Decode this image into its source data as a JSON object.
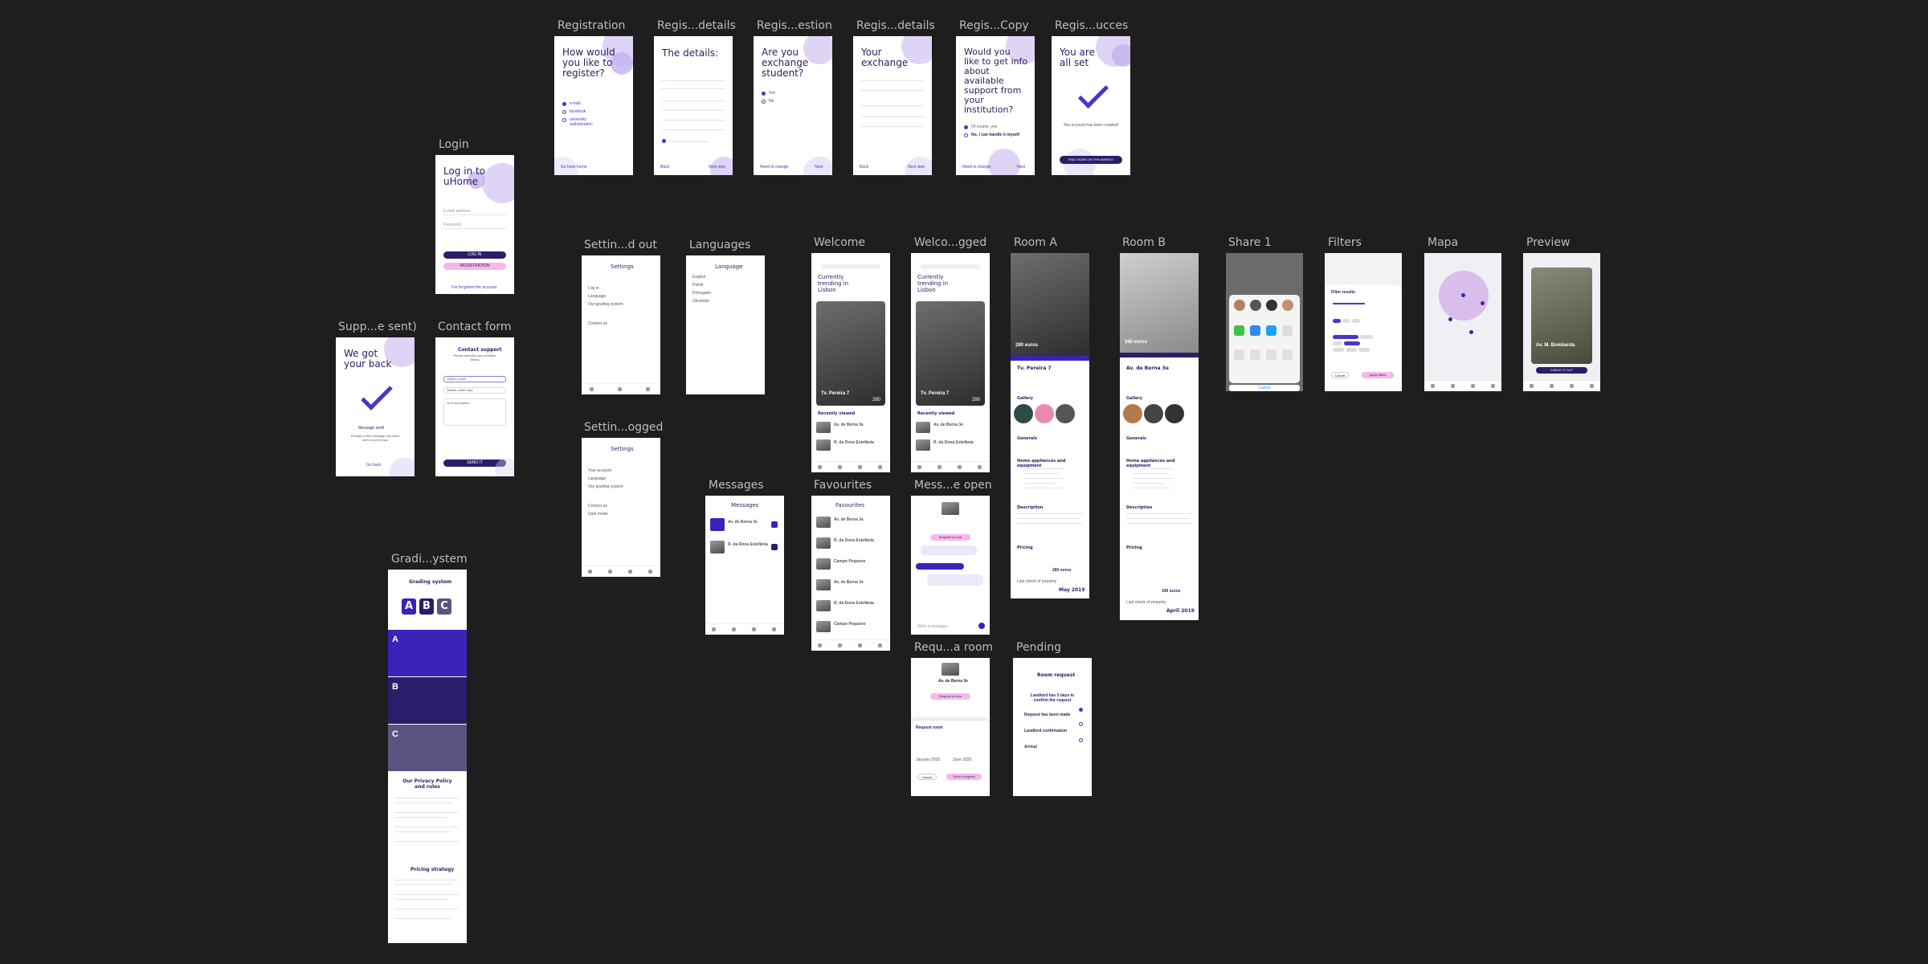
{
  "frames": {
    "registration": {
      "label": "Registration",
      "title": "How would you like to register?",
      "options": [
        "e-mail",
        "facebook",
        "university authorisation"
      ],
      "footer": "Go back home"
    },
    "reg_details": {
      "label": "Regis...details",
      "title": "The details:",
      "back": "Back",
      "next": "Next step"
    },
    "reg_question": {
      "label": "Regis...estion",
      "title": "Are you exchange student?",
      "yes": "Yes",
      "no": "No",
      "back": "Need to change",
      "next": "Next"
    },
    "reg_details2": {
      "label": "Regis...details",
      "title": "Your exchange",
      "back": "Back",
      "next": "Next step"
    },
    "reg_copy": {
      "label": "Regis...Copy",
      "title": "Would you like to get info about available support from your institution?",
      "opt1": "Of course, yes",
      "opt2": "No, I can handle it myself",
      "back": "Need to change",
      "next": "Next"
    },
    "reg_success": {
      "label": "Regis...ucces",
      "title": "You are all set",
      "message": "You account has been created!",
      "button": "FIND HOME ON THE MARKET"
    },
    "login": {
      "label": "Login",
      "title": "Log in to uHome",
      "email": "E-mail address",
      "password": "Password",
      "login_btn": "LOG IN",
      "register_btn": "REGISTRATION",
      "forgot": "I've forgotten the account"
    },
    "support_sent": {
      "label": "Supp...e sent)",
      "title": "We got your back",
      "message": "Message sent!",
      "sub": "Receipt of this message has been sent to your email",
      "back": "Go back"
    },
    "contact_form": {
      "label": "Contact form",
      "title": "Contact support",
      "sub": "Please describe your problem below",
      "field1": "Select a topic",
      "field2": "Details of the topic",
      "field3": "Your description",
      "send": "SEND IT"
    },
    "settings_out": {
      "label": "Settin...d out",
      "title": "Settings",
      "items": [
        "Log in",
        "Language",
        "Our grading system",
        "Contact us"
      ]
    },
    "languages": {
      "label": "Languages",
      "title": "Language",
      "items": [
        "English",
        "Polski",
        "Português",
        "Ukrainian"
      ]
    },
    "settings_logged": {
      "label": "Settin...ogged",
      "title": "Settings",
      "items": [
        "Your account",
        "Language",
        "Our grading system",
        "Contact us",
        "Dark mode"
      ]
    },
    "welcome": {
      "label": "Welcome",
      "heading": "Currently trending in Lisbon",
      "card_title": "Tv. Pereira 7",
      "price": "280",
      "section": "Recently viewed",
      "rows": [
        "Av. de Berna 3e",
        "R. da Dona Estefânia"
      ]
    },
    "welcome_logged": {
      "label": "Welco...gged",
      "heading": "Currently trending in Lisbon",
      "card_title": "Tv. Pereira 7",
      "price": "280",
      "section": "Recently viewed",
      "rows": [
        "Av. de Berna 3e",
        "R. da Dona Estefânia"
      ]
    },
    "room_a": {
      "label": "Room A",
      "title": "Tv. Pereira 7",
      "price": "280 euros",
      "price2": "280 euros",
      "date": "May 2019",
      "sections": [
        "Gallery",
        "Generals",
        "Home appliances and equipment",
        "Description",
        "Pricing"
      ],
      "last": "Last check of property"
    },
    "room_b": {
      "label": "Room B",
      "title": "Av. de Berna 3e",
      "price": "340 euros",
      "price2": "340 euros",
      "date": "April 2019",
      "sections": [
        "Gallery",
        "Generals",
        "Home appliances and equipment",
        "Description",
        "Pricing"
      ],
      "last": "Last check of property"
    },
    "share": {
      "label": "Share 1",
      "cancel": "Cancel"
    },
    "filters": {
      "label": "Filters",
      "title": "Filter results",
      "cancel": "Cancel",
      "apply": "Apply filters"
    },
    "mapa": {
      "label": "Mapa"
    },
    "preview": {
      "label": "Preview",
      "card": "Av. M. Bombarda",
      "button": "CHECK IT OUT"
    },
    "messages": {
      "label": "Messages",
      "title": "Messages",
      "rows": [
        "Av. de Berna 3e",
        "R. da Dona Estefânia"
      ]
    },
    "favourites": {
      "label": "Favourites",
      "title": "Favourites",
      "rows": [
        "Av. de Berna 3e",
        "R. da Dona Estefânia",
        "Campo Pequeno",
        "Av. de Berna 3e",
        "R. da Dona Estefânia",
        "Campo Pequeno"
      ]
    },
    "message_open": {
      "label": "Mess...e open",
      "request": "Request a room",
      "input": "Write a message..."
    },
    "request_room": {
      "label": "Requ...a room",
      "title": "Av. de Berna 3e",
      "request": "Request a room",
      "form_title": "Request room",
      "from": "January 2020",
      "to": "June 2020",
      "cancel": "Cancel",
      "send": "Send a request"
    },
    "pending": {
      "label": "Pending",
      "title": "Room request",
      "steps": [
        "Landlord has 3 days to confirm the request",
        "Request has been made",
        "Landlord confirmation",
        "Arrival"
      ]
    },
    "grading": {
      "label": "Gradi...ystem",
      "title": "Grading system",
      "grades": [
        "A",
        "B",
        "C"
      ],
      "privacy": "Our Privacy Policy and rules",
      "pricing": "Pricing strategy"
    }
  }
}
